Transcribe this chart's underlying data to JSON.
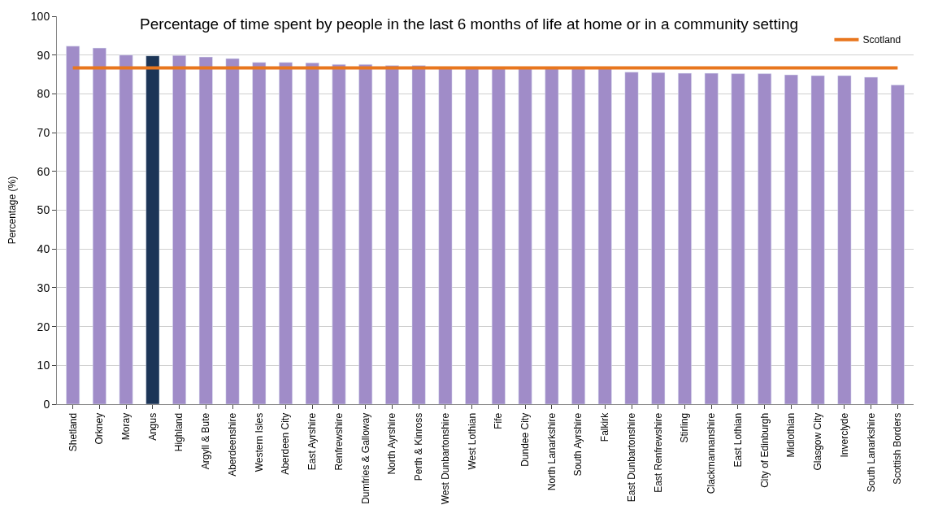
{
  "chart_data": {
    "type": "bar",
    "title": "Percentage of time spent by people in the last 6 months of life at home or in a community setting",
    "ylabel": "Percentage (%)",
    "categories": [
      "Shetland",
      "Orkney",
      "Moray",
      "Angus",
      "Highland",
      "Argyll & Bute",
      "Aberdeenshire",
      "Western Isles",
      "Aberdeen City",
      "East Ayrshire",
      "Renfrewshire",
      "Dumfries & Galloway",
      "North Ayrshire",
      "Perth & Kinross",
      "West Dunbartonshire",
      "West Lothian",
      "Fife",
      "Dundee City",
      "North Lanarkshire",
      "South Ayrshire",
      "Falkirk",
      "East Dunbartonshire",
      "East Renfrewshire",
      "Stirling",
      "Clackmannanshire",
      "East Lothian",
      "City of Edinburgh",
      "Midlothian",
      "Glasgow City",
      "Inverclyde",
      "South Lanarkshire",
      "Scottish Borders"
    ],
    "values": [
      92.3,
      91.8,
      90.0,
      89.8,
      89.9,
      89.5,
      89.1,
      88.1,
      88.1,
      88.0,
      87.6,
      87.6,
      87.3,
      87.3,
      87.0,
      87.0,
      86.9,
      86.9,
      86.8,
      86.8,
      86.8,
      85.6,
      85.5,
      85.3,
      85.3,
      85.2,
      85.2,
      84.9,
      84.7,
      84.7,
      84.3,
      82.3
    ],
    "colors": [
      "#a08cc8",
      "#a08cc8",
      "#a08cc8",
      "#1c3557",
      "#a08cc8",
      "#a08cc8",
      "#a08cc8",
      "#a08cc8",
      "#a08cc8",
      "#a08cc8",
      "#a08cc8",
      "#a08cc8",
      "#a08cc8",
      "#a08cc8",
      "#a08cc8",
      "#a08cc8",
      "#a08cc8",
      "#a08cc8",
      "#a08cc8",
      "#a08cc8",
      "#a08cc8",
      "#a08cc8",
      "#a08cc8",
      "#a08cc8",
      "#a08cc8",
      "#a08cc8",
      "#a08cc8",
      "#a08cc8",
      "#a08cc8",
      "#a08cc8",
      "#a08cc8",
      "#a08cc8"
    ],
    "ref_lines": [
      {
        "axis": "y",
        "value": 86.7,
        "label": "Scotland",
        "color": "#e8761e"
      }
    ],
    "ylim": [
      0,
      100
    ],
    "yticks": [
      0,
      10,
      20,
      30,
      40,
      50,
      60,
      70,
      80,
      90,
      100
    ],
    "grid": "y",
    "legend": "top right"
  }
}
